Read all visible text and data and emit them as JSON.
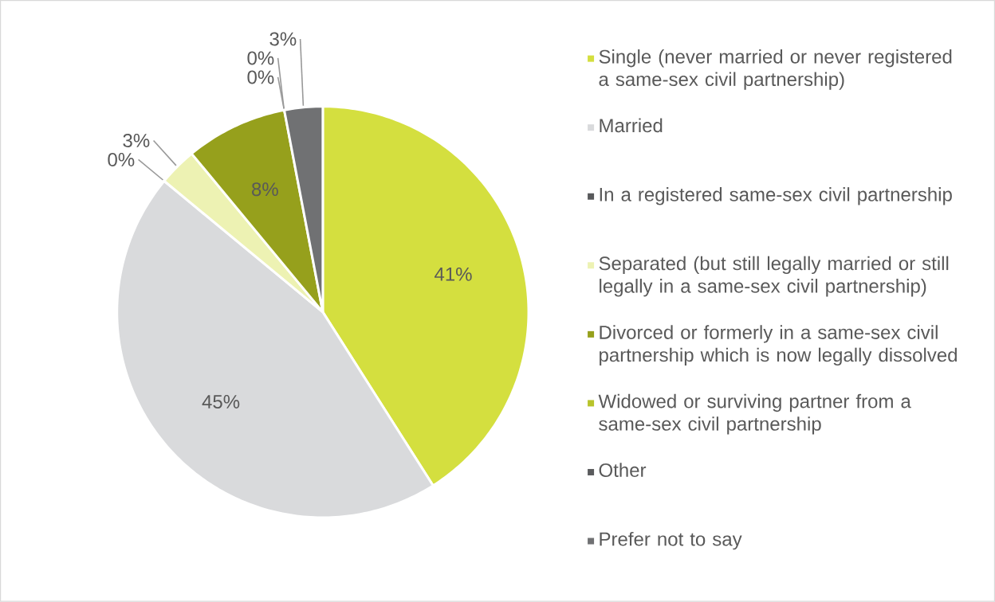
{
  "chart_data": {
    "type": "pie",
    "categories": [
      "Single (never married or never registered a same-sex civil partnership)",
      "Married",
      "In a registered same-sex civil partnership",
      "Separated (but still legally married or still legally in a same-sex civil partnership)",
      "Divorced or formerly in a same-sex civil partnership which is now legally dissolved",
      "Widowed or surviving partner from a same-sex civil partnership",
      "Other",
      "Prefer not to say"
    ],
    "values": [
      41,
      45,
      0,
      3,
      8,
      0,
      0,
      3
    ],
    "colors": [
      "#d4df3f",
      "#d9dadc",
      "#58595b",
      "#edf2b3",
      "#96a01c",
      "#b8c42b",
      "#5a5b5d",
      "#707173"
    ],
    "value_labels": [
      "41%",
      "45%",
      "0%",
      "3%",
      "8%",
      "0%",
      "0%",
      "3%"
    ],
    "legend": "right"
  }
}
